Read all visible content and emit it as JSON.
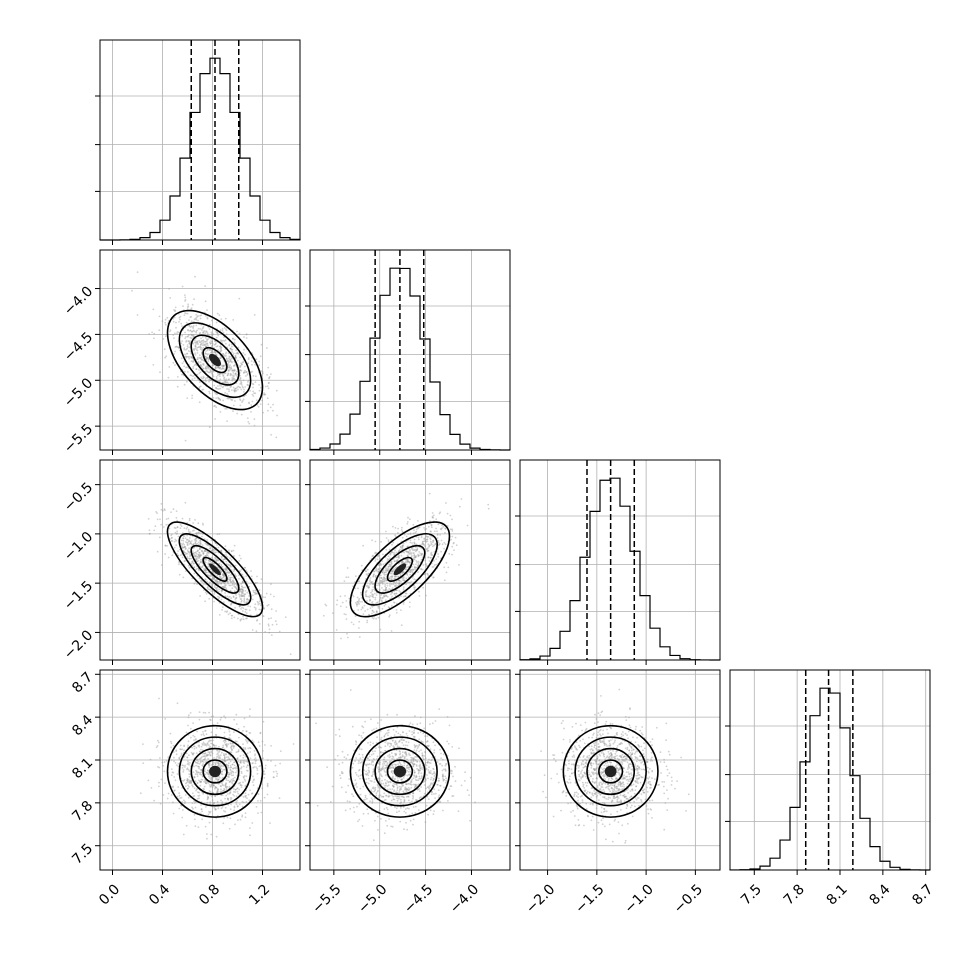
{
  "chart_data": {
    "type": "corner",
    "grid": true,
    "parameters": [
      {
        "range": [
          -0.1,
          1.5
        ],
        "ticks": [
          0.0,
          0.4,
          0.8,
          1.2
        ],
        "tick_labels": [
          "0.0",
          "0.4",
          "0.8",
          "1.2"
        ],
        "mean": 0.82,
        "sd": 0.19,
        "quantiles": [
          0.63,
          0.82,
          1.01
        ]
      },
      {
        "range": [
          -5.76,
          -3.58
        ],
        "ticks": [
          -5.5,
          -5.0,
          -4.5,
          -4.0
        ],
        "tick_labels": [
          "−5.5",
          "−5.0",
          "−4.5",
          "−4.0"
        ],
        "mean": -4.78,
        "sd": 0.27,
        "quantiles": [
          -5.05,
          -4.78,
          -4.52
        ]
      },
      {
        "range": [
          -2.28,
          -0.25
        ],
        "ticks": [
          -2.0,
          -1.5,
          -1.0,
          -0.5
        ],
        "tick_labels": [
          "−2.0",
          "−1.5",
          "−1.0",
          "−0.5"
        ],
        "mean": -1.36,
        "sd": 0.24,
        "quantiles": [
          -1.6,
          -1.36,
          -1.12
        ]
      },
      {
        "range": [
          7.33,
          8.73
        ],
        "ticks": [
          7.5,
          7.8,
          8.1,
          8.4,
          8.7
        ],
        "tick_labels": [
          "7.5",
          "7.8",
          "8.1",
          "8.4",
          "8.7"
        ],
        "mean": 8.02,
        "sd": 0.16,
        "quantiles": [
          7.86,
          8.02,
          8.19
        ]
      }
    ],
    "correlations": {
      "1-0": -0.55,
      "2-0": -0.8,
      "2-1": 0.7,
      "3-0": 0.0,
      "3-1": 0.0,
      "3-2": 0.0
    }
  }
}
